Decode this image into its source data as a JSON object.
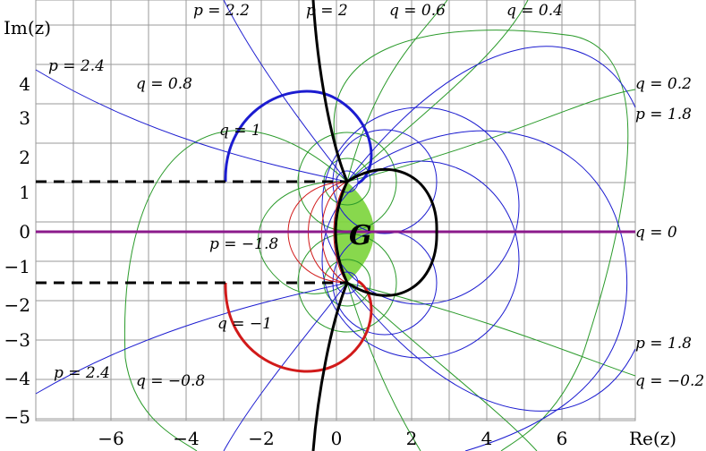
{
  "axes": {
    "x_label": "Re(z)",
    "y_label": "Im(z)",
    "x_ticks": [
      "−6",
      "−4",
      "−2",
      "0",
      "2",
      "4",
      "6"
    ],
    "y_ticks": [
      "4",
      "3",
      "2",
      "1",
      "0",
      "−1",
      "−2",
      "−3",
      "−4",
      "−5"
    ]
  },
  "region_label": "G",
  "curve_labels": [
    "p = 2.2",
    "p = 2",
    "q = 0.6",
    "q = 0.4",
    "p = 2.4",
    "q = 0.8",
    "q = 0.2",
    "p = 1.8",
    "q = 1",
    "q = 0",
    "p = −1.8",
    "q = −1",
    "p = 1.8",
    "p = 2.4",
    "q = −0.8",
    "q = −0.2"
  ],
  "colors": {
    "grid": "#9a9a9a",
    "p_curves": "#1c1cd0",
    "q_curves": "#2a9a2a",
    "red_curves": "#d11a1a",
    "real_axis": "#8b1a8b",
    "region_fill": "#7bd43a",
    "boundary": "#000000"
  }
}
